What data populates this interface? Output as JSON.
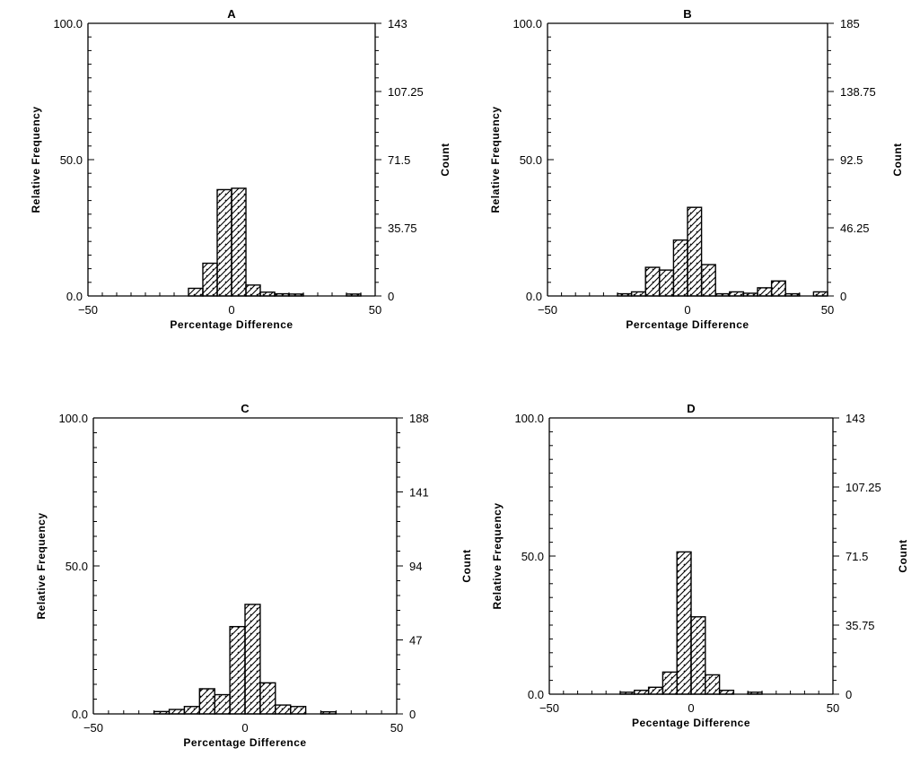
{
  "chart_data": [
    {
      "type": "bar",
      "title": "A",
      "xlabel": "Percentage Difference",
      "ylabel": "Relative Frequency",
      "y2label": "Count",
      "xlim": [
        -50,
        50
      ],
      "ylim": [
        0,
        100
      ],
      "y2lim": [
        0,
        143
      ],
      "xticks": [
        "−50",
        "0",
        "50"
      ],
      "yticks": [
        "0.0",
        "50.0",
        "100.0"
      ],
      "y2ticks": [
        "0",
        "35.75",
        "71.5",
        "107.25",
        "143"
      ],
      "bins": [
        {
          "x0": -15,
          "x1": -10,
          "value": 2.8
        },
        {
          "x0": -10,
          "x1": -5,
          "value": 12
        },
        {
          "x0": -5,
          "x1": 0,
          "value": 39
        },
        {
          "x0": 0,
          "x1": 5,
          "value": 39.5
        },
        {
          "x0": 5,
          "x1": 10,
          "value": 4
        },
        {
          "x0": 10,
          "x1": 15,
          "value": 1.4
        },
        {
          "x0": 15,
          "x1": 20,
          "value": 0.8
        },
        {
          "x0": 20,
          "x1": 25,
          "value": 0.7
        },
        {
          "x0": 40,
          "x1": 45,
          "value": 0.7
        }
      ]
    },
    {
      "type": "bar",
      "title": "B",
      "xlabel": "Percentage Difference",
      "ylabel": "Relative Frequency",
      "y2label": "Count",
      "xlim": [
        -50,
        50
      ],
      "ylim": [
        0,
        100
      ],
      "y2lim": [
        0,
        185
      ],
      "xticks": [
        "−50",
        "0",
        "50"
      ],
      "yticks": [
        "0.0",
        "50.0",
        "100.0"
      ],
      "y2ticks": [
        "0",
        "46.25",
        "92.5",
        "138.75",
        "185"
      ],
      "bins": [
        {
          "x0": -25,
          "x1": -20,
          "value": 0.8
        },
        {
          "x0": -20,
          "x1": -15,
          "value": 1.5
        },
        {
          "x0": -15,
          "x1": -10,
          "value": 10.5
        },
        {
          "x0": -10,
          "x1": -5,
          "value": 9.5
        },
        {
          "x0": -5,
          "x1": 0,
          "value": 20.5
        },
        {
          "x0": 0,
          "x1": 5,
          "value": 32.5
        },
        {
          "x0": 5,
          "x1": 10,
          "value": 11.5
        },
        {
          "x0": 10,
          "x1": 15,
          "value": 0.8
        },
        {
          "x0": 15,
          "x1": 20,
          "value": 1.5
        },
        {
          "x0": 20,
          "x1": 25,
          "value": 1
        },
        {
          "x0": 25,
          "x1": 30,
          "value": 3
        },
        {
          "x0": 30,
          "x1": 35,
          "value": 5.5
        },
        {
          "x0": 35,
          "x1": 40,
          "value": 0.8
        },
        {
          "x0": 45,
          "x1": 50,
          "value": 1.5
        }
      ]
    },
    {
      "type": "bar",
      "title": "C",
      "xlabel": "Percentage Difference",
      "ylabel": "Relative Frequency",
      "y2label": "Count",
      "xlim": [
        -50,
        50
      ],
      "ylim": [
        0,
        100
      ],
      "y2lim": [
        0,
        188
      ],
      "xticks": [
        "−50",
        "0",
        "50"
      ],
      "yticks": [
        "0.0",
        "50.0",
        "100.0"
      ],
      "y2ticks": [
        "0",
        "47",
        "94",
        "141",
        "188"
      ],
      "bins": [
        {
          "x0": -30,
          "x1": -25,
          "value": 0.8
        },
        {
          "x0": -25,
          "x1": -20,
          "value": 1.5
        },
        {
          "x0": -20,
          "x1": -15,
          "value": 2.5
        },
        {
          "x0": -15,
          "x1": -10,
          "value": 8.5
        },
        {
          "x0": -10,
          "x1": -5,
          "value": 6.5
        },
        {
          "x0": -5,
          "x1": 0,
          "value": 29.5
        },
        {
          "x0": 0,
          "x1": 5,
          "value": 37
        },
        {
          "x0": 5,
          "x1": 10,
          "value": 10.5
        },
        {
          "x0": 10,
          "x1": 15,
          "value": 3
        },
        {
          "x0": 15,
          "x1": 20,
          "value": 2.5
        },
        {
          "x0": 25,
          "x1": 30,
          "value": 0.7
        }
      ]
    },
    {
      "type": "bar",
      "title": "D",
      "xlabel": "Pecentage Difference",
      "ylabel": "Relative Frequency",
      "y2label": "Count",
      "xlim": [
        -50,
        50
      ],
      "ylim": [
        0,
        100
      ],
      "y2lim": [
        0,
        143
      ],
      "xticks": [
        "−50",
        "0",
        "50"
      ],
      "yticks": [
        "0.0",
        "50.0",
        "100.0"
      ],
      "y2ticks": [
        "0",
        "35.75",
        "71.5",
        "107.25",
        "143"
      ],
      "bins": [
        {
          "x0": -25,
          "x1": -20,
          "value": 0.7
        },
        {
          "x0": -20,
          "x1": -15,
          "value": 1.4
        },
        {
          "x0": -15,
          "x1": -10,
          "value": 2.5
        },
        {
          "x0": -10,
          "x1": -5,
          "value": 8
        },
        {
          "x0": -5,
          "x1": 0,
          "value": 51.5
        },
        {
          "x0": 0,
          "x1": 5,
          "value": 28
        },
        {
          "x0": 5,
          "x1": 10,
          "value": 7
        },
        {
          "x0": 10,
          "x1": 15,
          "value": 1.4
        },
        {
          "x0": 20,
          "x1": 25,
          "value": 0.7
        }
      ]
    }
  ]
}
